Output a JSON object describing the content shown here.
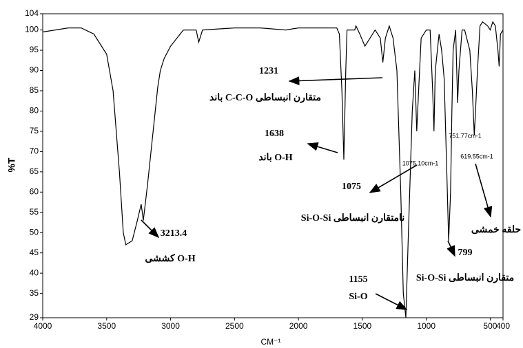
{
  "chart_data": {
    "type": "line",
    "x_label": "CM⁻¹",
    "y_label": "%T",
    "x": [
      4000,
      3800,
      3700,
      3600,
      3500,
      3450,
      3400,
      3370,
      3350,
      3300,
      3260,
      3230,
      3213,
      3180,
      3120,
      3100,
      3080,
      3050,
      3000,
      2950,
      2900,
      2800,
      2780,
      2750,
      2500,
      2300,
      2100,
      2000,
      1800,
      1700,
      1680,
      1660,
      1645,
      1630,
      1620,
      1560,
      1550,
      1520,
      1480,
      1440,
      1400,
      1360,
      1340,
      1320,
      1290,
      1260,
      1230,
      1200,
      1180,
      1160,
      1140,
      1110,
      1090,
      1075,
      1060,
      1040,
      1000,
      970,
      950,
      940,
      930,
      900,
      880,
      860,
      840,
      825,
      810,
      800,
      790,
      770,
      755,
      745,
      720,
      700,
      660,
      640,
      625,
      615,
      600,
      580,
      560,
      520,
      500,
      480,
      460,
      440,
      430,
      420,
      400
    ],
    "values": [
      99.5,
      100.5,
      100.5,
      99,
      94,
      85,
      65,
      50,
      47,
      48,
      53,
      57,
      53,
      62,
      80,
      86,
      90,
      93,
      96,
      98,
      100,
      100,
      97,
      100,
      100.5,
      100.5,
      100,
      100.5,
      100.5,
      100.5,
      99,
      85,
      68,
      90,
      100,
      100,
      101,
      99,
      96,
      98,
      100,
      98,
      92,
      98,
      101,
      98,
      90,
      60,
      35,
      29,
      50,
      80,
      90,
      75,
      85,
      98,
      100,
      100,
      85,
      75,
      90,
      99,
      95,
      88,
      65,
      48,
      60,
      80,
      95,
      100,
      82,
      90,
      100,
      100,
      95,
      85,
      74,
      80,
      90,
      101,
      102,
      101,
      100,
      102,
      101,
      95,
      91,
      99,
      100
    ],
    "color": "#000000",
    "xlim": [
      4000,
      400
    ],
    "xticks": [
      4000,
      3500,
      3000,
      2500,
      2000,
      1500,
      1000,
      500,
      400
    ],
    "ylim": [
      29,
      104
    ],
    "yticks": [
      29,
      35,
      40,
      45,
      50,
      55,
      60,
      65,
      70,
      75,
      80,
      85,
      90,
      95,
      100,
      104
    ],
    "grid": false,
    "annotations": [
      "1231",
      "باند C-C-O متقارن انبساطی",
      "1638",
      "باند O-H",
      "1075",
      "Si-O-Si نامتقارن انبساطی",
      "1155",
      "Si-O",
      "3213.4",
      "کششی O-H",
      "799",
      "Si-O-Si متقارن انبساطی",
      "حلقه خمشی"
    ],
    "peak_labels": [
      "1075.10cm-1",
      "751.77cm-1",
      "619.55cm-1"
    ]
  }
}
